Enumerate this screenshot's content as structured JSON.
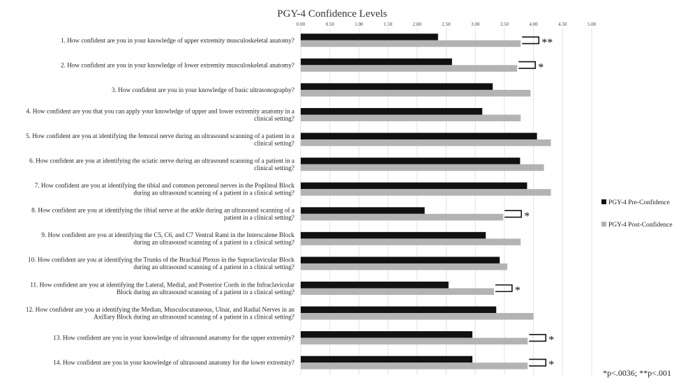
{
  "chart_data": {
    "type": "bar",
    "orientation": "horizontal",
    "title": "PGY-4 Confidence Levels",
    "xlabel": "",
    "ylabel": "",
    "xlim": [
      0,
      5
    ],
    "x_ticks": [
      "0.00",
      "0.50",
      "1.00",
      "1.50",
      "2.00",
      "2.50",
      "3.00",
      "3.50",
      "4.00",
      "4.50",
      "5.00"
    ],
    "grid": true,
    "legend_position": "right",
    "colors": {
      "pre": "#111111",
      "post": "#b3b3b3",
      "grid": "#e2e2e2"
    },
    "categories": [
      [
        "1. How confident are you in your knowledge of upper extremity musculoskeletal anatomy?"
      ],
      [
        "2. How confident are you in your knowledge of lower extremity musculoskeletal anatomy?"
      ],
      [
        "3. How confident are you in your knowledge of basic ultrasonography?"
      ],
      [
        "4. How confident are you that you can apply your knowledge of upper and lower extremity anatomy in a",
        "clinical setting?"
      ],
      [
        "5. How confident are you at identifying the femoral nerve during an ultrasound scanning of a patient in a",
        "clinical setting?"
      ],
      [
        "6. How confident are you at identifying the sciatic nerve during an ultrasound scanning of a patient in a",
        "clinical setting?"
      ],
      [
        "7. How confident are you at identifying the tibial and common peroneal nerves in the Popliteal Block",
        "during an ultrasound scanning of a patient in a clinical setting?"
      ],
      [
        "8. How confident are you at identifying the tibial nerve at the ankle during an ultrasound scanning of a",
        "patient in a clinical setting?"
      ],
      [
        "9. How confident are you at identifying the C5, C6, and C7 Ventral Rami in the Interscalene Block",
        "during an ultrasound scanning of a patient in a clinical setting?"
      ],
      [
        "10. How confident are you at identifying the Trunks of the Brachial Plexus in the Supraclavicular Block",
        "during an ultrasound scanning of a patient in a clinical setting?"
      ],
      [
        "11. How confident are you at identifying the Lateral, Medial, and Posterior Cords in the Infraclavicular",
        "Block during an ultrasound scanning of a patient in a clinical setting?"
      ],
      [
        "12. How confident are you at identifying the Median, Musculocutaneous, Ulnar, and Radial Nerves in an",
        "Axillary Block during an ultrasound scanning of a patient in a clinical setting?"
      ],
      [
        "13. How confident are you in your knowledge of ultrasound anatomy for the upper extremity?"
      ],
      [
        "14. How confident are you in your knowledge of ultrasound anatomy for the lower extremity?"
      ]
    ],
    "series": [
      {
        "name": "PGY-4 Pre-Confidence",
        "values": [
          2.36,
          2.6,
          3.3,
          3.12,
          4.06,
          3.77,
          3.89,
          2.13,
          3.18,
          3.42,
          2.54,
          3.36,
          2.95,
          2.95
        ]
      },
      {
        "name": "PGY-4 Post-Confidence",
        "values": [
          3.78,
          3.72,
          3.95,
          3.78,
          4.3,
          4.18,
          4.3,
          3.48,
          3.78,
          3.55,
          3.32,
          4.0,
          3.9,
          3.9
        ]
      }
    ],
    "significance": [
      "**",
      "*",
      "",
      "",
      "",
      "",
      "",
      "*",
      "",
      "",
      "*",
      "",
      "*",
      "*"
    ],
    "footnote": "*p<.0036; **p<.001"
  }
}
